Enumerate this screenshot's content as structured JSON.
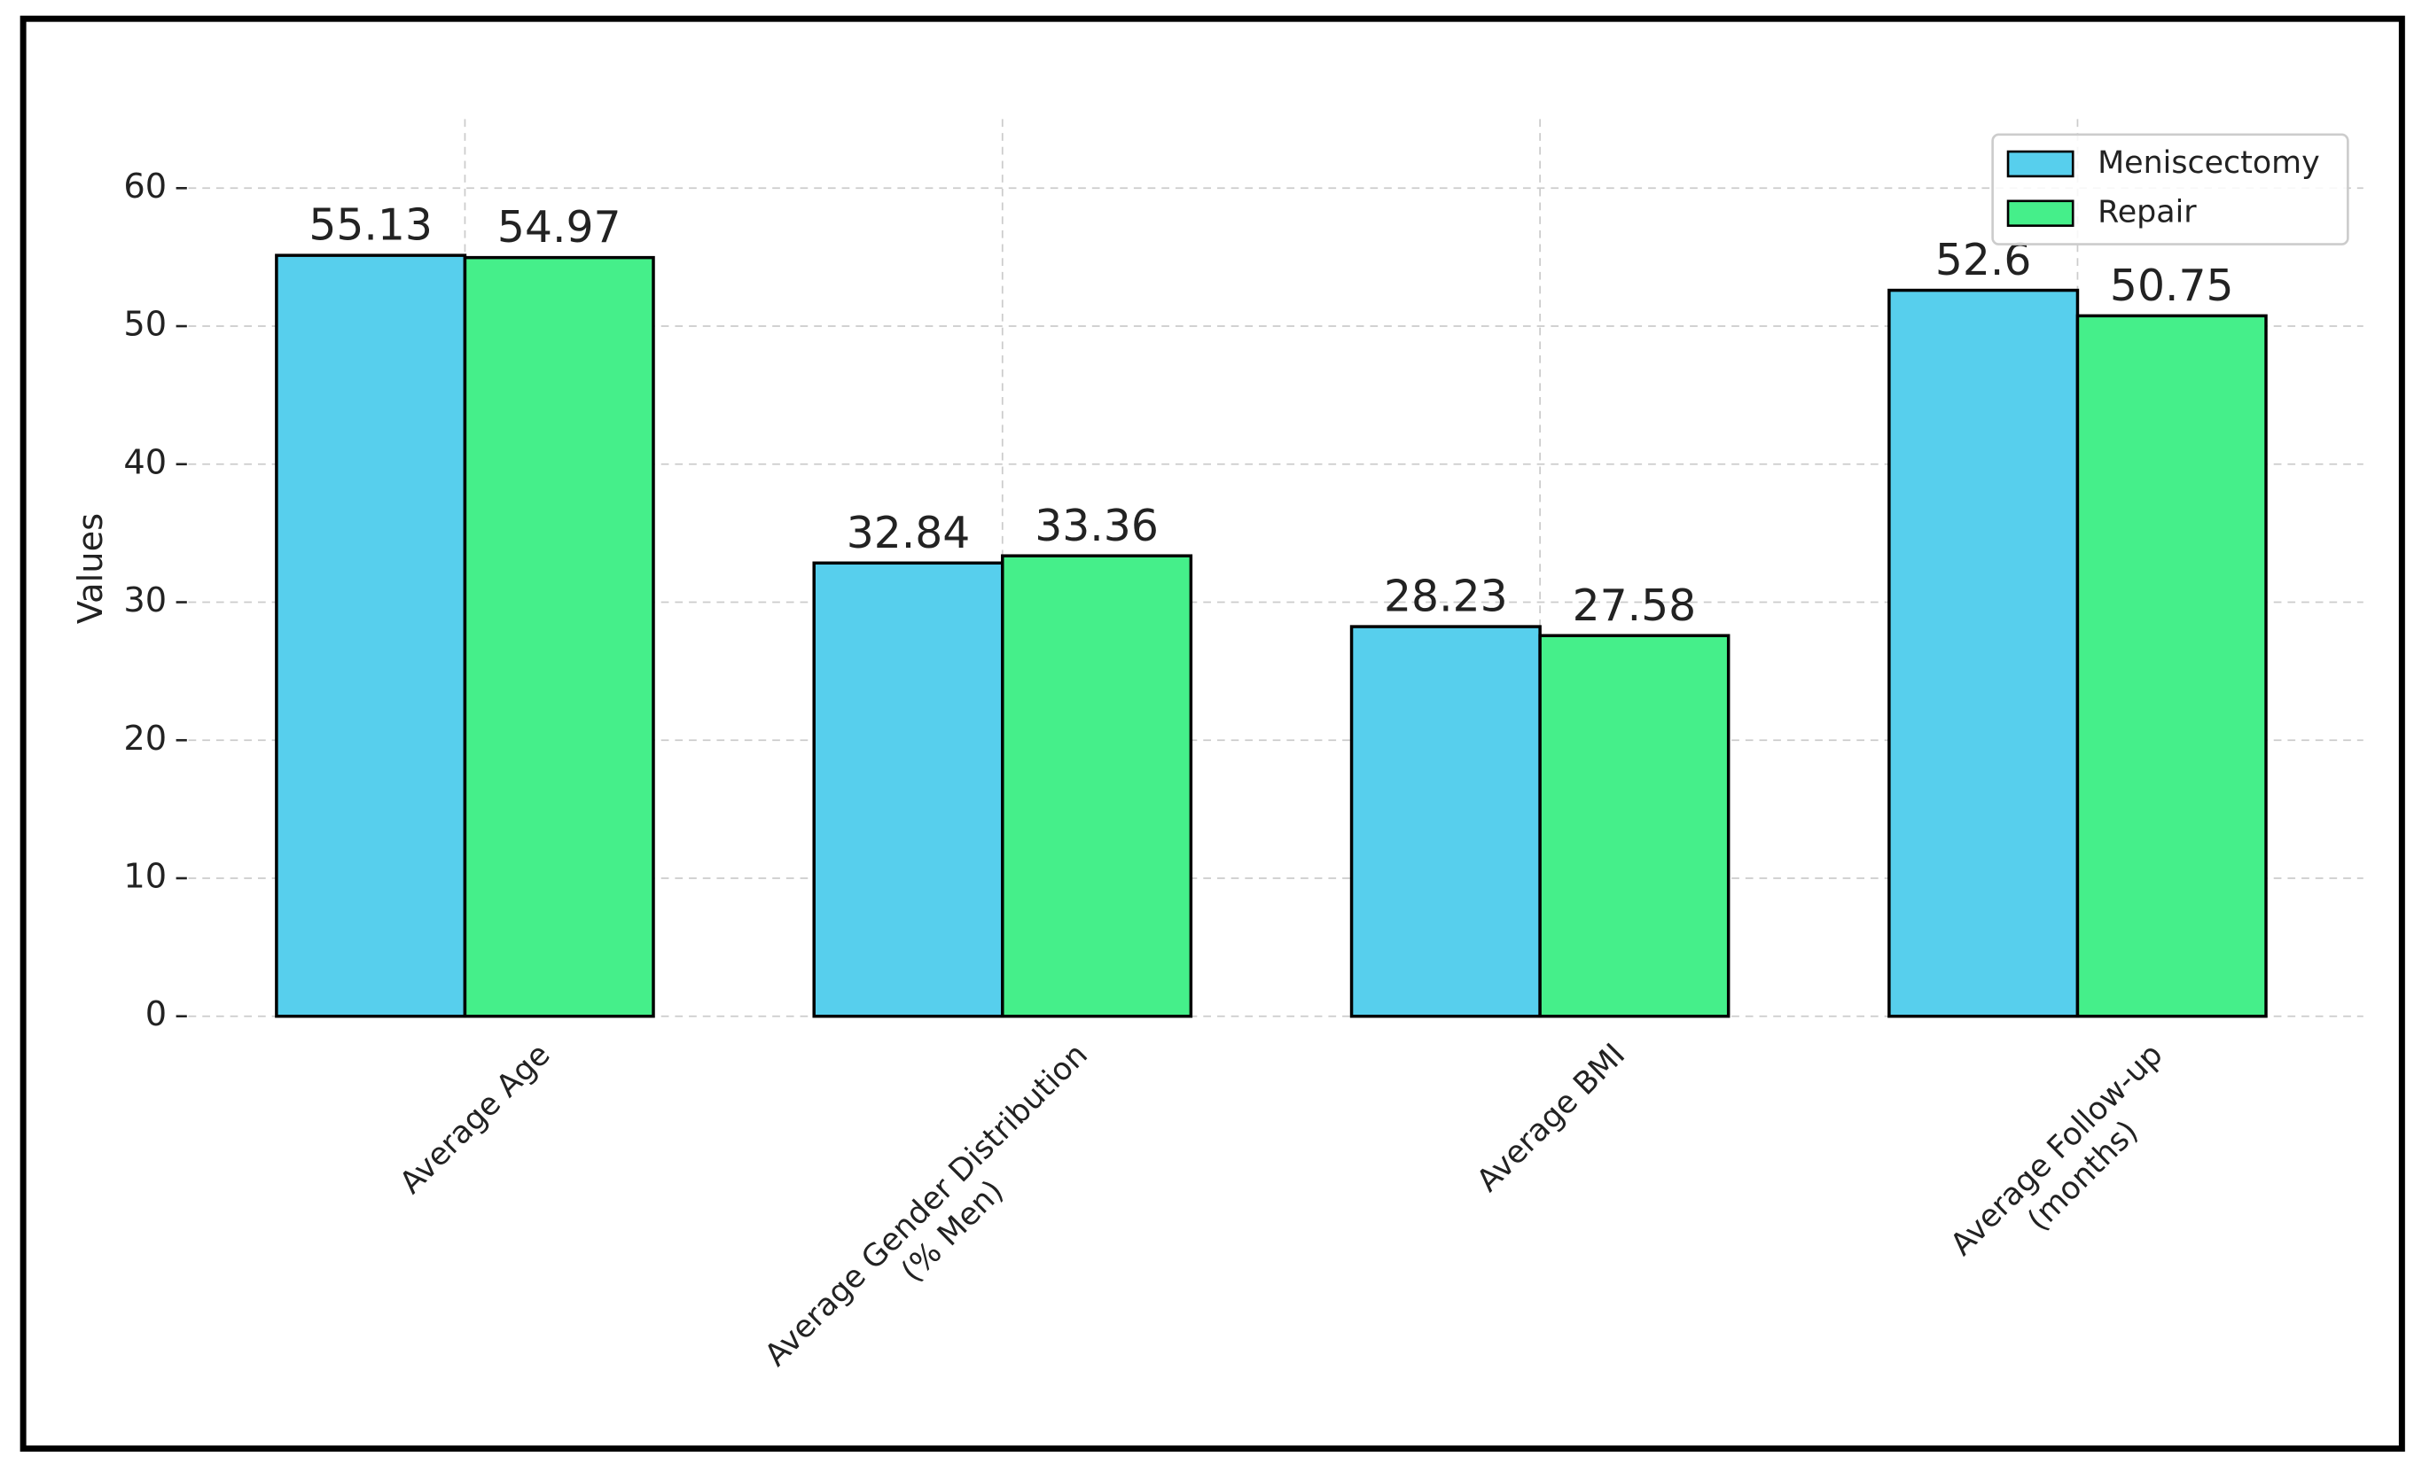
{
  "chart_data": {
    "type": "bar",
    "categories": [
      "Average Age",
      "Average Gender Distribution\n(% Men)",
      "Average BMI",
      "Average Follow-up\n(months)"
    ],
    "ylabel": "Values",
    "series": [
      {
        "name": "Meniscectomy",
        "color": "#57cfed",
        "values": [
          55.13,
          32.84,
          28.23,
          52.6
        ]
      },
      {
        "name": "Repair",
        "color": "#45ef8a",
        "values": [
          54.97,
          33.36,
          27.58,
          50.75
        ]
      }
    ],
    "ylim": [
      0,
      65
    ],
    "yticks": [
      0,
      10,
      20,
      30,
      40,
      50,
      60
    ],
    "grid": true,
    "legend": "upper right"
  }
}
